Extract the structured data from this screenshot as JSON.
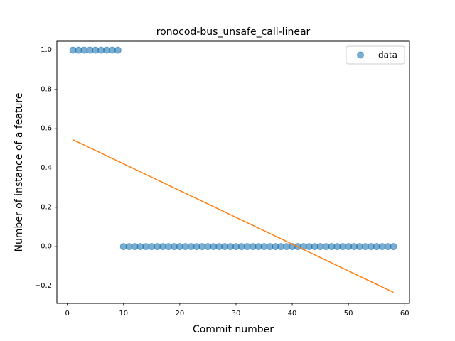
{
  "chart_data": {
    "type": "scatter",
    "title": "ronocod-bus_unsafe_call-linear",
    "xlabel": "Commit number",
    "ylabel": "Number of instance of a feature",
    "xlim": [
      -1.85,
      60.85
    ],
    "ylim": [
      -0.289,
      1.0455
    ],
    "xticks": [
      0,
      10,
      20,
      30,
      40,
      50,
      60
    ],
    "yticks": [
      -0.2,
      0.0,
      0.2,
      0.4,
      0.6,
      0.8,
      1.0
    ],
    "xtick_labels": [
      "0",
      "10",
      "20",
      "30",
      "40",
      "50",
      "60"
    ],
    "ytick_labels": [
      "−0.2",
      "0.0",
      "0.2",
      "0.4",
      "0.6",
      "0.8",
      "1.0"
    ],
    "grid": false,
    "legend": {
      "position": "top-right",
      "entries": [
        "data"
      ]
    },
    "series": [
      {
        "name": "data",
        "kind": "scatter",
        "color": "#1f77b4",
        "x": [
          1,
          2,
          3,
          4,
          5,
          6,
          7,
          8,
          9,
          10,
          11,
          12,
          13,
          14,
          15,
          16,
          17,
          18,
          19,
          20,
          21,
          22,
          23,
          24,
          25,
          26,
          27,
          28,
          29,
          30,
          31,
          32,
          33,
          34,
          35,
          36,
          37,
          38,
          39,
          40,
          41,
          42,
          43,
          44,
          45,
          46,
          47,
          48,
          49,
          50,
          51,
          52,
          53,
          54,
          55,
          56,
          57,
          58
        ],
        "y": [
          1,
          1,
          1,
          1,
          1,
          1,
          1,
          1,
          1,
          0,
          0,
          0,
          0,
          0,
          0,
          0,
          0,
          0,
          0,
          0,
          0,
          0,
          0,
          0,
          0,
          0,
          0,
          0,
          0,
          0,
          0,
          0,
          0,
          0,
          0,
          0,
          0,
          0,
          0,
          0,
          0,
          0,
          0,
          0,
          0,
          0,
          0,
          0,
          0,
          0,
          0,
          0,
          0,
          0,
          0,
          0,
          0,
          0
        ]
      },
      {
        "kind": "line",
        "color": "#ff7f0e",
        "x": [
          1,
          58
        ],
        "y": [
          0.544,
          -0.233
        ]
      }
    ]
  }
}
